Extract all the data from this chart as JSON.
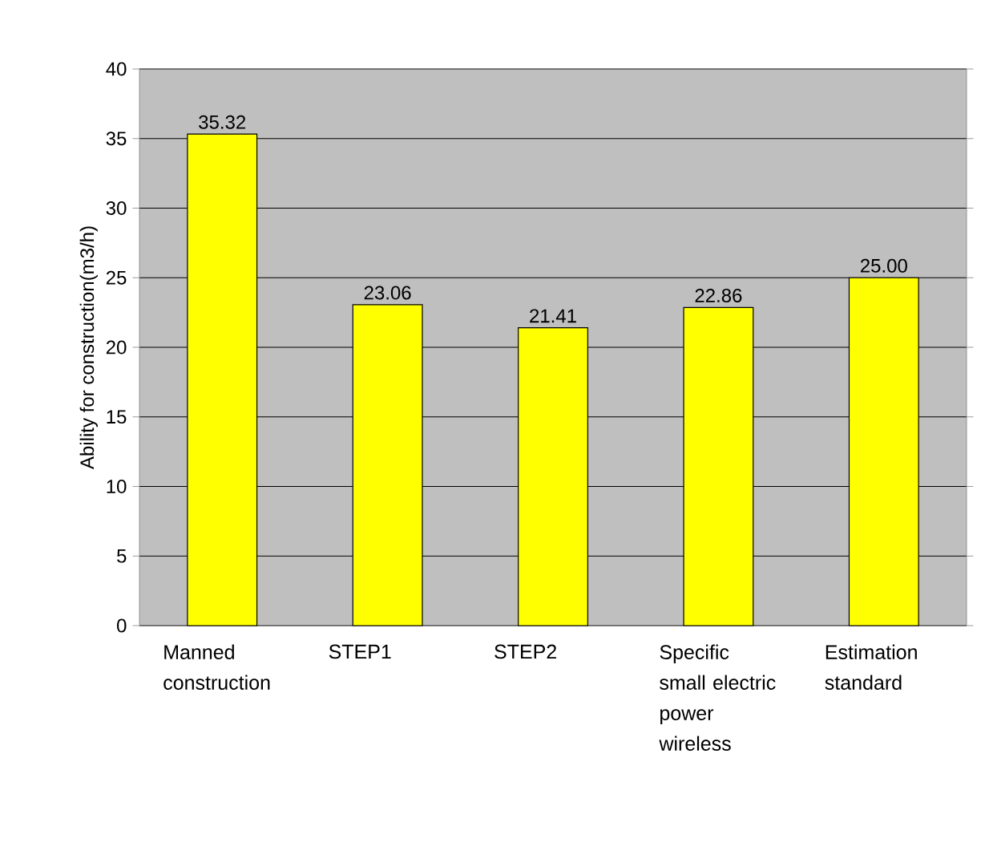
{
  "chart_data": {
    "type": "bar",
    "ylabel": "Ability for construction(m3/h)",
    "categories": [
      "Manned construction",
      "STEP1",
      "STEP2",
      "Specific small electric power wireless",
      "Estimation standard"
    ],
    "values": [
      35.32,
      23.06,
      21.41,
      22.86,
      25.0
    ],
    "value_labels": [
      "35.32",
      "23.06",
      "21.41",
      "22.86",
      "25.00"
    ],
    "color": "#ffff00",
    "ylim": [
      0,
      40
    ],
    "yticks": [
      0,
      5,
      10,
      15,
      20,
      25,
      30,
      35,
      40
    ],
    "grid": "y"
  }
}
